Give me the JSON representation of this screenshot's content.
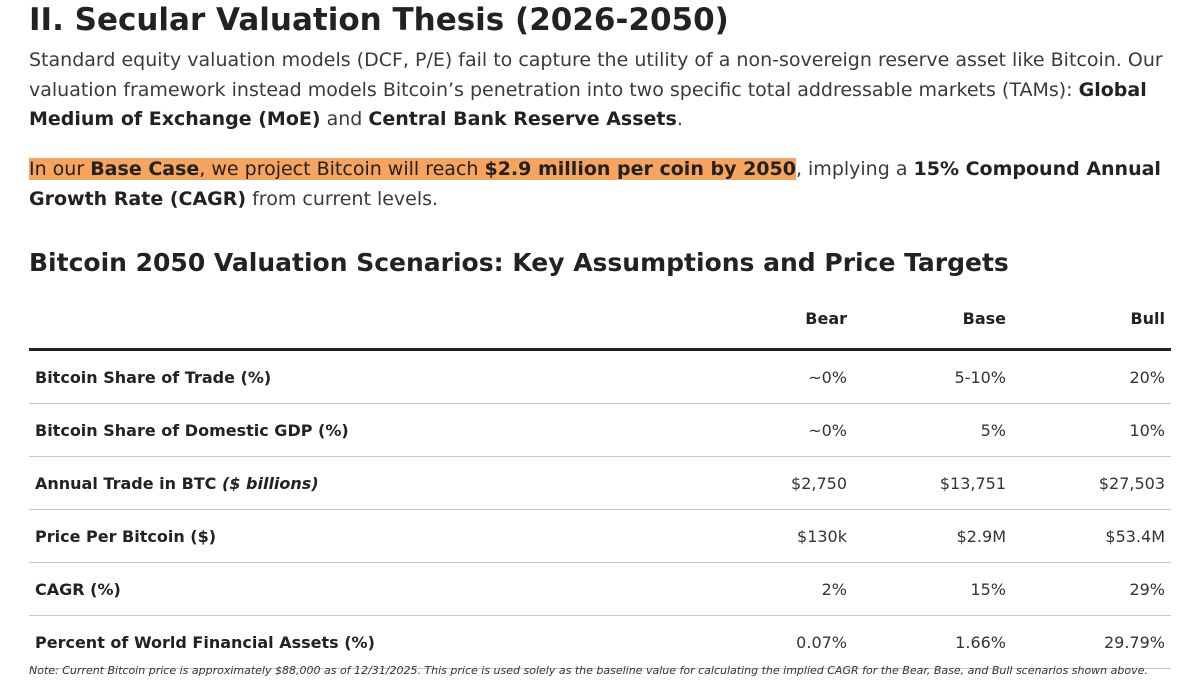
{
  "heading": "II. Secular Valuation Thesis (2026-2050)",
  "intro": {
    "text1": "Standard equity valuation models (DCF, P/E) fail to capture the utility of a non-sovereign reserve asset like Bitcoin. Our valuation framework instead models Bitcoin’s penetration into two specific total addressable markets (TAMs): ",
    "bold1": "Global Medium of Exchange (MoE)",
    "text2": " and ",
    "bold2": "Central Bank Reserve Assets",
    "text3": "."
  },
  "projection": {
    "hl_text1": "In our ",
    "hl_bold1": "Base Case",
    "hl_text2": ", we project Bitcoin will reach ",
    "hl_bold2": "$2.9 million per coin by 2050",
    "text1": ", implying a ",
    "bold1": "15% Compound Annual Growth Rate (CAGR)",
    "text2": " from current levels.",
    "highlight_color": "#f6a460"
  },
  "table": {
    "title": "Bitcoin 2050 Valuation Scenarios: Key Assumptions and Price Targets",
    "columns": [
      "Bear",
      "Base",
      "Bull"
    ],
    "rows": [
      {
        "label": "Bitcoin Share of Trade (%)",
        "label_italic": "",
        "bear": "~0%",
        "base": "5-10%",
        "bull": "20%"
      },
      {
        "label": "Bitcoin Share of Domestic GDP (%)",
        "label_italic": "",
        "bear": "~0%",
        "base": "5%",
        "bull": "10%"
      },
      {
        "label": "Annual Trade in BTC ",
        "label_italic": "($ billions)",
        "bear": "$2,750",
        "base": "$13,751",
        "bull": "$27,503"
      },
      {
        "label": "Price Per Bitcoin ($)",
        "label_italic": "",
        "bear": "$130k",
        "base": "$2.9M",
        "bull": "$53.4M"
      },
      {
        "label": "CAGR (%)",
        "label_italic": "",
        "bear": "2%",
        "base": "15%",
        "bull": "29%"
      },
      {
        "label": "Percent of World Financial Assets (%)",
        "label_italic": "",
        "bear": "0.07%",
        "base": "1.66%",
        "bull": "29.79%"
      }
    ]
  },
  "note": "Note: Current Bitcoin price is approximately $88,000 as of 12/31/2025. This price is used solely as the baseline value for calculating the implied CAGR for the Bear, Base, and Bull scenarios shown above."
}
